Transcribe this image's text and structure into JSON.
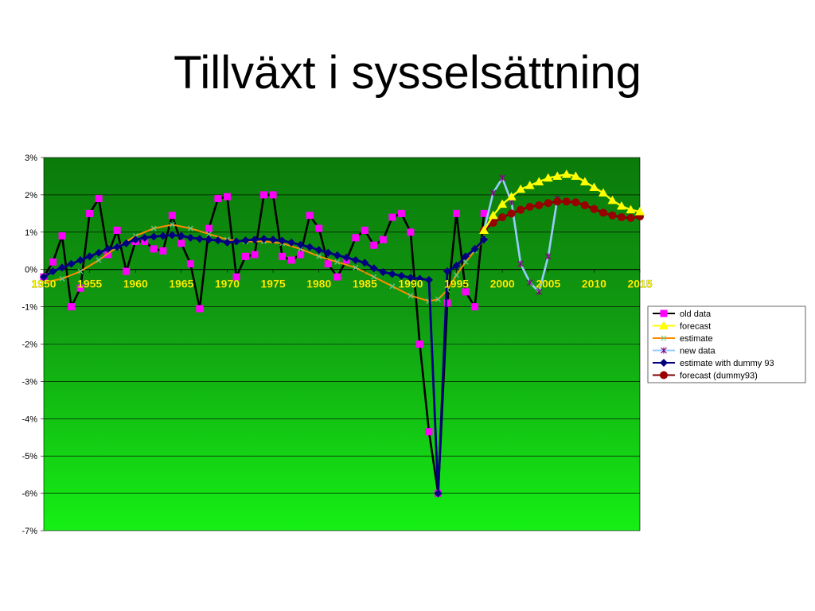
{
  "slide": {
    "title": "Tillväxt i sysselsättning"
  },
  "chart_data": {
    "type": "line",
    "title": "",
    "xlabel": "",
    "ylabel": "",
    "xlim": [
      1950,
      2015
    ],
    "ylim": [
      -7,
      3
    ],
    "y_ticks": [
      "3%",
      "2%",
      "1%",
      "0%",
      "-1%",
      "-2%",
      "-3%",
      "-4%",
      "-5%",
      "-6%",
      "-7%"
    ],
    "x_ticks": [
      "1950",
      "1955",
      "1960",
      "1965",
      "1970",
      "1975",
      "1980",
      "1985",
      "1990",
      "1995",
      "2000",
      "2005",
      "2010",
      "2015"
    ],
    "grid": true,
    "legend_position": "right",
    "background": "green-gradient",
    "series": [
      {
        "name": "old data",
        "color": "#000000",
        "marker": "square",
        "marker_color": "#ff00ff",
        "x": [
          1950,
          1951,
          1952,
          1953,
          1954,
          1955,
          1956,
          1957,
          1958,
          1959,
          1960,
          1961,
          1962,
          1963,
          1964,
          1965,
          1966,
          1967,
          1968,
          1969,
          1970,
          1971,
          1972,
          1973,
          1974,
          1975,
          1976,
          1977,
          1978,
          1979,
          1980,
          1981,
          1982,
          1983,
          1984,
          1985,
          1986,
          1987,
          1988,
          1989,
          1990,
          1991,
          1992,
          1993,
          1994,
          1995,
          1996,
          1997,
          1998
        ],
        "y": [
          -0.2,
          0.2,
          0.9,
          -1.0,
          -0.5,
          1.5,
          1.9,
          0.4,
          1.05,
          -0.05,
          0.75,
          0.75,
          0.55,
          0.5,
          1.45,
          0.7,
          0.15,
          -1.05,
          1.1,
          1.9,
          1.95,
          -0.2,
          0.35,
          0.4,
          2.0,
          2.0,
          0.35,
          0.25,
          0.4,
          1.45,
          1.1,
          0.15,
          -0.2,
          0.25,
          0.85,
          1.05,
          0.65,
          0.8,
          1.4,
          1.5,
          1.0,
          -2.0,
          -4.35,
          -6.0,
          -0.9,
          1.5,
          -0.6,
          -1.0,
          1.5
        ]
      },
      {
        "name": "forecast",
        "color": "#ffff00",
        "marker": "triangle",
        "marker_color": "#ffff00",
        "x": [
          1998,
          1999,
          2000,
          2001,
          2002,
          2003,
          2004,
          2005,
          2006,
          2007,
          2008,
          2009,
          2010,
          2011,
          2012,
          2013,
          2014,
          2015
        ],
        "y": [
          1.05,
          1.45,
          1.75,
          1.95,
          2.15,
          2.25,
          2.35,
          2.45,
          2.5,
          2.55,
          2.5,
          2.35,
          2.2,
          2.05,
          1.85,
          1.7,
          1.6,
          1.55
        ]
      },
      {
        "name": "estimate",
        "color": "#ff8c00",
        "marker": "x",
        "marker_color": "#66cc99",
        "x": [
          1950,
          1952,
          1954,
          1956,
          1958,
          1960,
          1962,
          1964,
          1966,
          1968,
          1970,
          1972,
          1974,
          1976,
          1978,
          1980,
          1982,
          1984,
          1986,
          1988,
          1990,
          1992,
          1993,
          1994,
          1995,
          1996,
          1997,
          1998
        ],
        "y": [
          -0.35,
          -0.25,
          -0.05,
          0.25,
          0.6,
          0.9,
          1.1,
          1.2,
          1.1,
          0.95,
          0.8,
          0.75,
          0.75,
          0.7,
          0.55,
          0.35,
          0.2,
          0.05,
          -0.2,
          -0.45,
          -0.7,
          -0.85,
          -0.8,
          -0.55,
          -0.15,
          0.2,
          0.5,
          0.8
        ]
      },
      {
        "name": "new data",
        "color": "#99ccff",
        "marker": "star",
        "marker_color": "#800080",
        "x": [
          1998,
          1999,
          2000,
          2001,
          2002,
          2003,
          2004,
          2005,
          2006
        ],
        "y": [
          1.05,
          2.05,
          2.45,
          1.8,
          0.15,
          -0.35,
          -0.6,
          0.35,
          1.9
        ]
      },
      {
        "name": "estimate with dummy 93",
        "color": "#000080",
        "marker": "diamond",
        "marker_color": "#000080",
        "x": [
          1950,
          1951,
          1952,
          1953,
          1954,
          1955,
          1956,
          1957,
          1958,
          1959,
          1960,
          1961,
          1962,
          1963,
          1964,
          1965,
          1966,
          1967,
          1968,
          1969,
          1970,
          1971,
          1972,
          1973,
          1974,
          1975,
          1976,
          1977,
          1978,
          1979,
          1980,
          1981,
          1982,
          1983,
          1984,
          1985,
          1986,
          1987,
          1988,
          1989,
          1990,
          1991,
          1992,
          1993,
          1994,
          1995,
          1996,
          1997,
          1998
        ],
        "y": [
          -0.2,
          -0.05,
          0.05,
          0.15,
          0.25,
          0.35,
          0.45,
          0.55,
          0.6,
          0.7,
          0.8,
          0.85,
          0.88,
          0.9,
          0.92,
          0.9,
          0.85,
          0.82,
          0.8,
          0.78,
          0.72,
          0.75,
          0.78,
          0.8,
          0.82,
          0.8,
          0.77,
          0.72,
          0.66,
          0.6,
          0.52,
          0.45,
          0.38,
          0.32,
          0.25,
          0.18,
          0.03,
          -0.07,
          -0.12,
          -0.17,
          -0.22,
          -0.25,
          -0.28,
          -6.0,
          -0.05,
          0.1,
          0.35,
          0.55,
          0.8
        ]
      },
      {
        "name": "forecast (dummy93)",
        "color": "#800000",
        "marker": "circle",
        "marker_color": "#990000",
        "x": [
          1998,
          1999,
          2000,
          2001,
          2002,
          2003,
          2004,
          2005,
          2006,
          2007,
          2008,
          2009,
          2010,
          2011,
          2012,
          2013,
          2014,
          2015
        ],
        "y": [
          1.05,
          1.25,
          1.4,
          1.5,
          1.6,
          1.68,
          1.72,
          1.78,
          1.82,
          1.82,
          1.8,
          1.72,
          1.62,
          1.52,
          1.45,
          1.4,
          1.38,
          1.42
        ]
      }
    ]
  }
}
